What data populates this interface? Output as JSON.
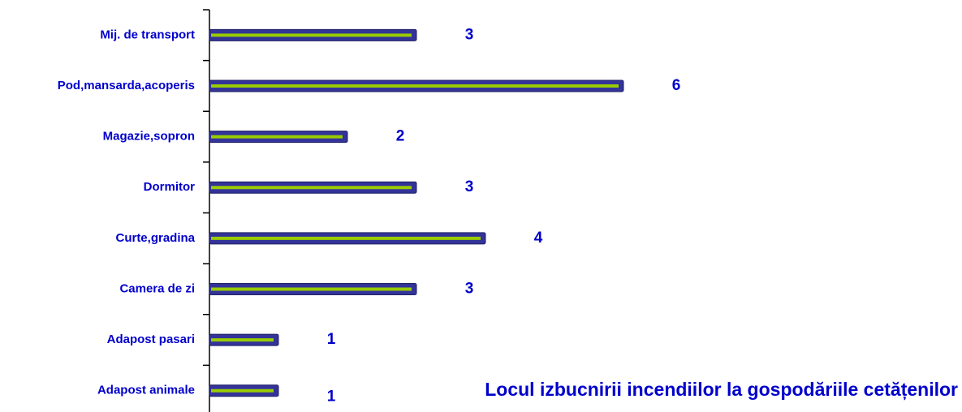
{
  "chart_data": {
    "type": "bar",
    "orientation": "horizontal",
    "title": "Locul izbucnirii incendiilor la gospodăriile cetățenilor",
    "categories": [
      "Mij. de transport",
      "Pod,mansarda,acoperis",
      "Magazie,sopron",
      "Dormitor",
      "Curte,gradina",
      "Camera de zi",
      "Adapost pasari",
      "Adapost animale"
    ],
    "values": [
      3,
      6,
      2,
      3,
      4,
      3,
      1,
      1
    ],
    "color": "#333399",
    "inner_color": "#99cc00",
    "label_color": "#0000cc",
    "xlim": [
      0,
      10
    ]
  }
}
